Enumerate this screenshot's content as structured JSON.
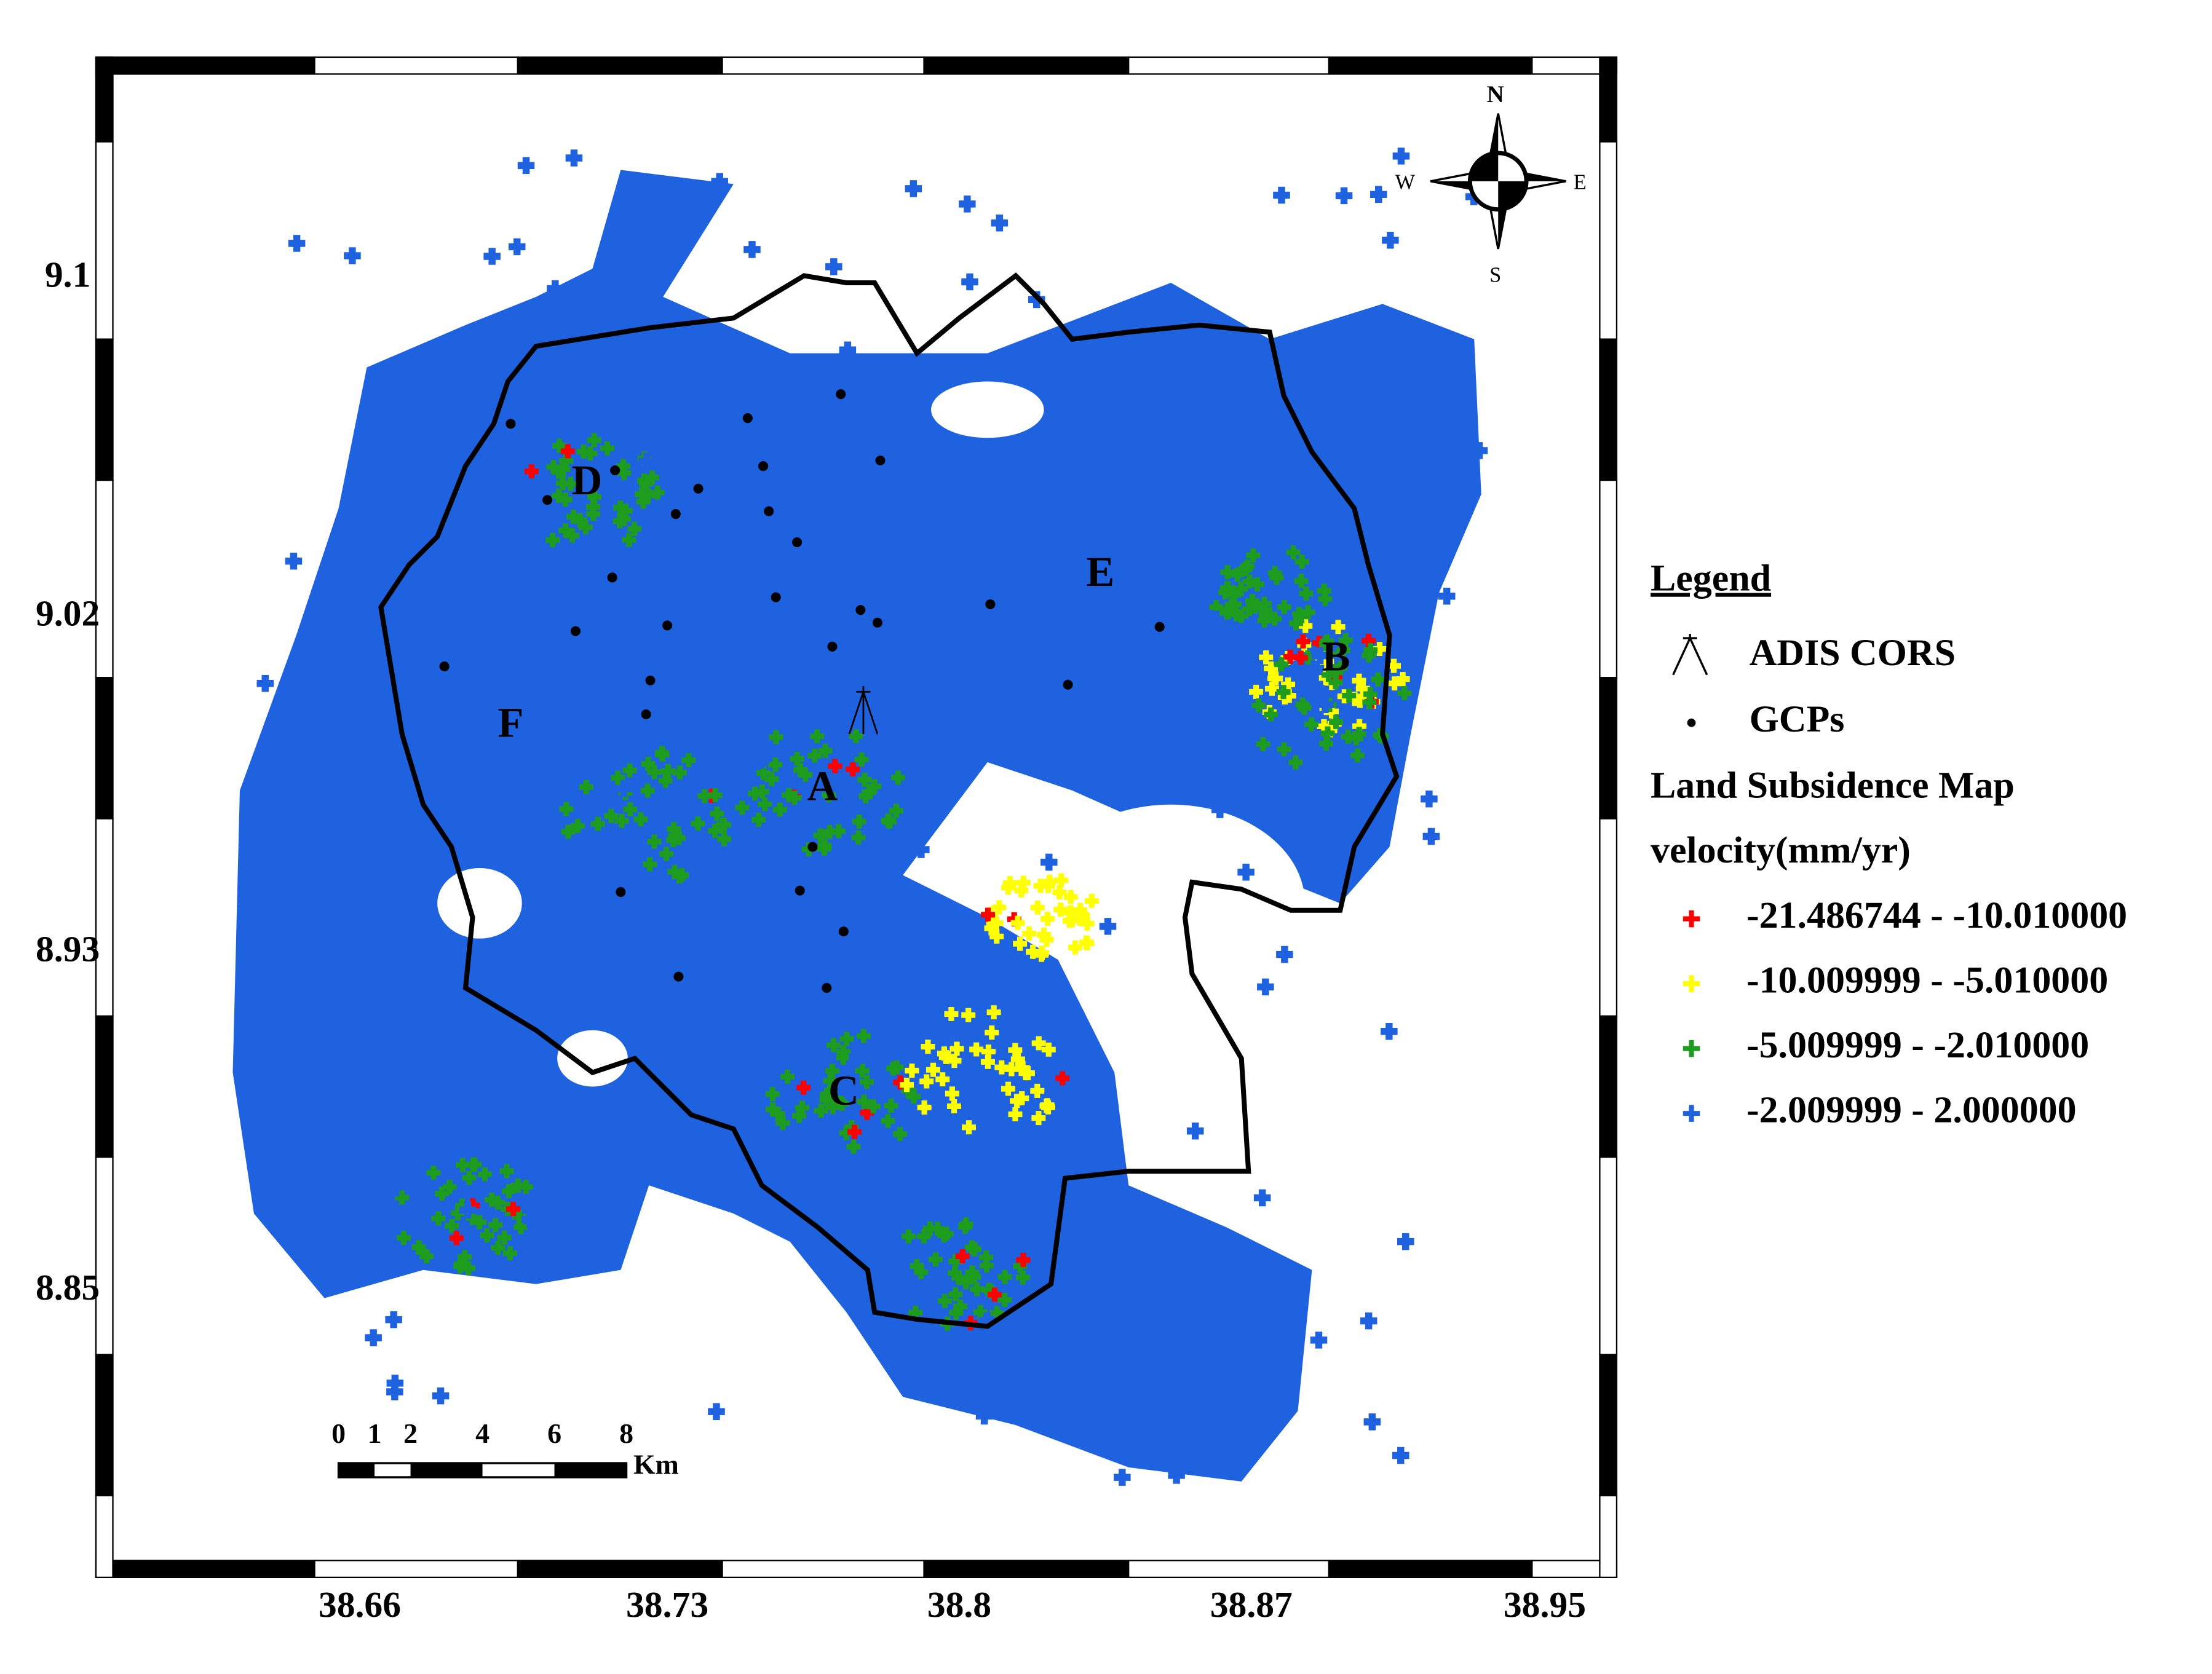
{
  "map": {
    "lon_labels": [
      38.66,
      38.73,
      38.8,
      38.87,
      38.95
    ],
    "lat_labels": [
      9.1,
      9.02,
      8.93,
      8.85
    ],
    "compass": {
      "n": "N",
      "e": "E",
      "s": "S",
      "w": "W"
    },
    "zones": [
      "A",
      "B",
      "C",
      "D",
      "E",
      "F"
    ],
    "scale_bar": {
      "ticks": [
        0,
        1,
        2,
        4,
        6,
        8
      ],
      "unit": "Km"
    },
    "legend": {
      "title": "Legend",
      "items": [
        {
          "label": "ADIS CORS"
        },
        {
          "label": "GCPs"
        }
      ],
      "layer": "Land Subsidence Map",
      "field": "velocity(mm/yr)",
      "classes": [
        {
          "label": "-21.486744 - -10.010000",
          "color": "#ff0000"
        },
        {
          "label": "-10.009999 - -5.010000",
          "color": "#ffff00"
        },
        {
          "label": "-5.009999 - -2.010000",
          "color": "#1e9c1e"
        },
        {
          "label": "-2.009999 - 2.000000",
          "color": "#1f62e0"
        }
      ]
    }
  }
}
